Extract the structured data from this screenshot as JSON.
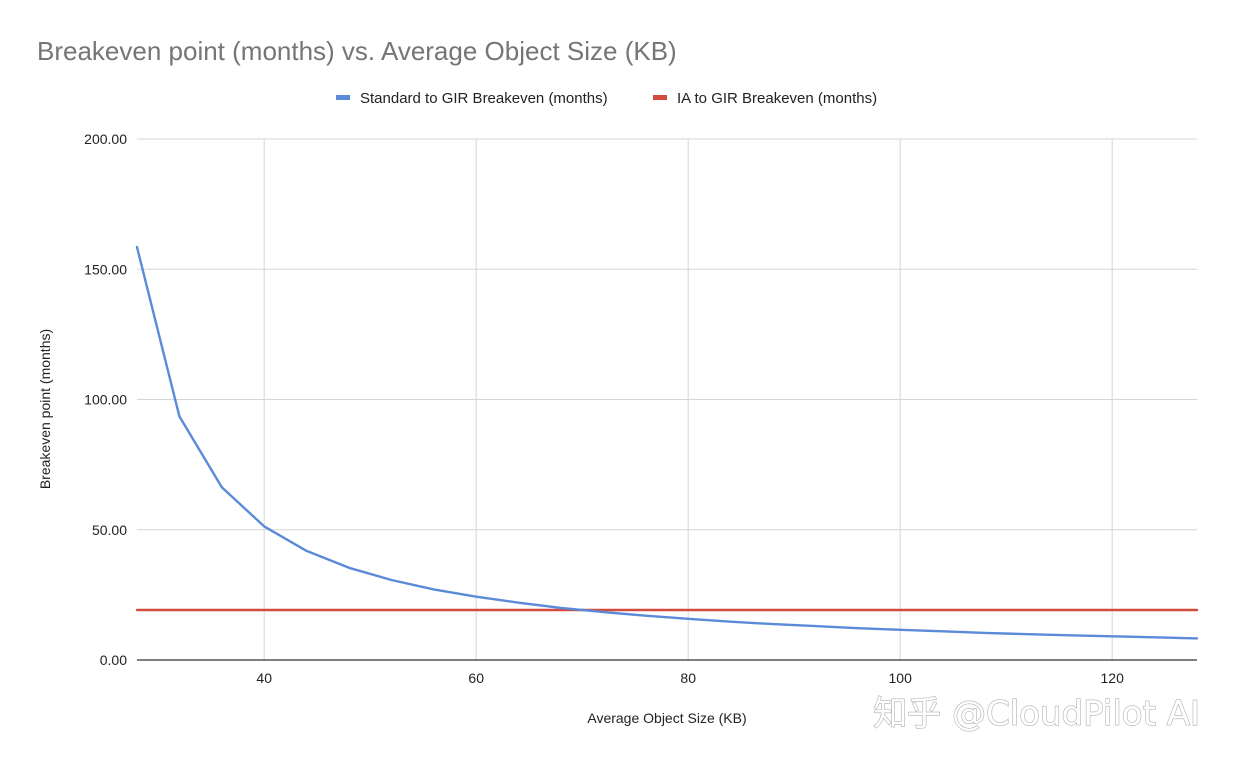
{
  "chart_data": {
    "type": "line",
    "title": "Breakeven point (months) vs. Average Object Size (KB)",
    "xlabel": "Average Object Size (KB)",
    "ylabel": "Breakeven point (months)",
    "xlim": [
      28,
      128
    ],
    "ylim": [
      0,
      200
    ],
    "xticks": [
      40,
      60,
      80,
      100,
      120
    ],
    "xtick_labels": [
      "40",
      "60",
      "80",
      "100",
      "120"
    ],
    "yticks": [
      0,
      50,
      100,
      150,
      200
    ],
    "ytick_labels": [
      "0.00",
      "50.00",
      "100.00",
      "150.00",
      "200.00"
    ],
    "grid": true,
    "legend_position": "top",
    "series": [
      {
        "name": "Standard to GIR Breakeven (months)",
        "color": "#5b8ad9",
        "x": [
          28,
          32,
          36,
          40,
          44,
          48,
          52,
          56,
          60,
          64,
          68,
          72,
          76,
          80,
          84,
          88,
          92,
          96,
          100,
          104,
          108,
          112,
          116,
          120,
          124,
          128
        ],
        "y": [
          158.5,
          93.5,
          66.3,
          51.3,
          41.9,
          35.4,
          30.7,
          27.1,
          24.3,
          22.0,
          20.0,
          18.4,
          17.0,
          15.8,
          14.7,
          13.8,
          13.0,
          12.2,
          11.6,
          11.0,
          10.4,
          9.9,
          9.5,
          9.1,
          8.7,
          8.3
        ]
      },
      {
        "name": "IA to GIR Breakeven (months)",
        "color": "#d24b3e",
        "x": [
          28,
          128
        ],
        "y": [
          19.2,
          19.2
        ]
      }
    ]
  },
  "watermark": {
    "text": "知乎 @CloudPilot AI"
  }
}
